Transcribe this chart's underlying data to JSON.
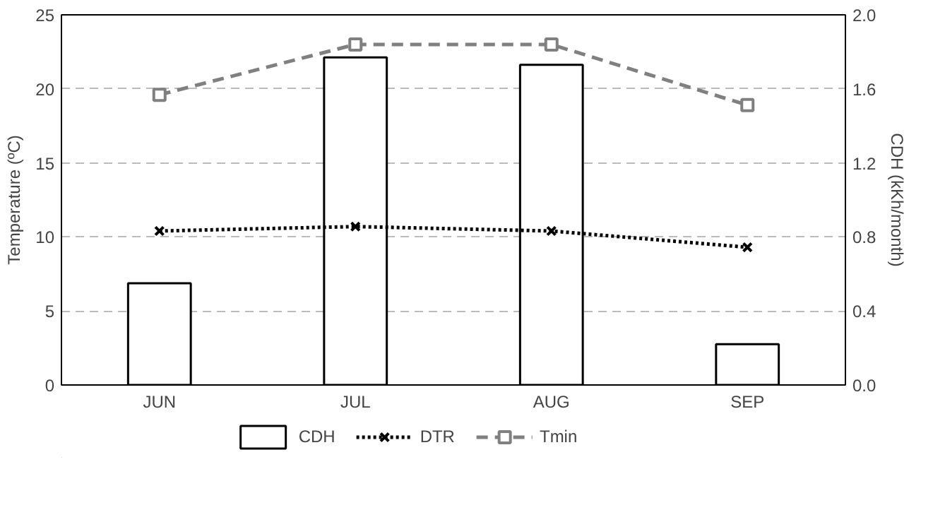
{
  "chart_data": {
    "type": "bar",
    "categories": [
      "JUN",
      "JUL",
      "AUG",
      "SEP"
    ],
    "ylabel": "Temperature (ºC)",
    "y2label": "CDH (kKh/month)",
    "ylim": [
      0,
      25
    ],
    "yticks": [
      0,
      5,
      10,
      15,
      20,
      25
    ],
    "y2lim": [
      0,
      2.0
    ],
    "y2ticks": [
      {
        "value": 0,
        "label": "0.0"
      },
      0.4,
      0.8,
      1.2,
      1.6,
      {
        "value": 2,
        "label": "2.0"
      }
    ],
    "grid": "y",
    "legend": "bottom",
    "series": [
      {
        "name": "CDH",
        "axis": "y2",
        "color": "#ffffff",
        "values": [
          0.55,
          1.77,
          1.73,
          0.22
        ]
      },
      {
        "name": "DTR",
        "type": "line",
        "color": "#000000",
        "marker": "cross",
        "line_style": "dotted",
        "values": [
          10.4,
          10.7,
          10.4,
          9.3
        ]
      },
      {
        "name": "Tmin",
        "type": "line",
        "color": "#808080",
        "marker": "square",
        "line_style": "dashed",
        "values": [
          19.6,
          23.0,
          23.0,
          18.9
        ]
      }
    ]
  }
}
